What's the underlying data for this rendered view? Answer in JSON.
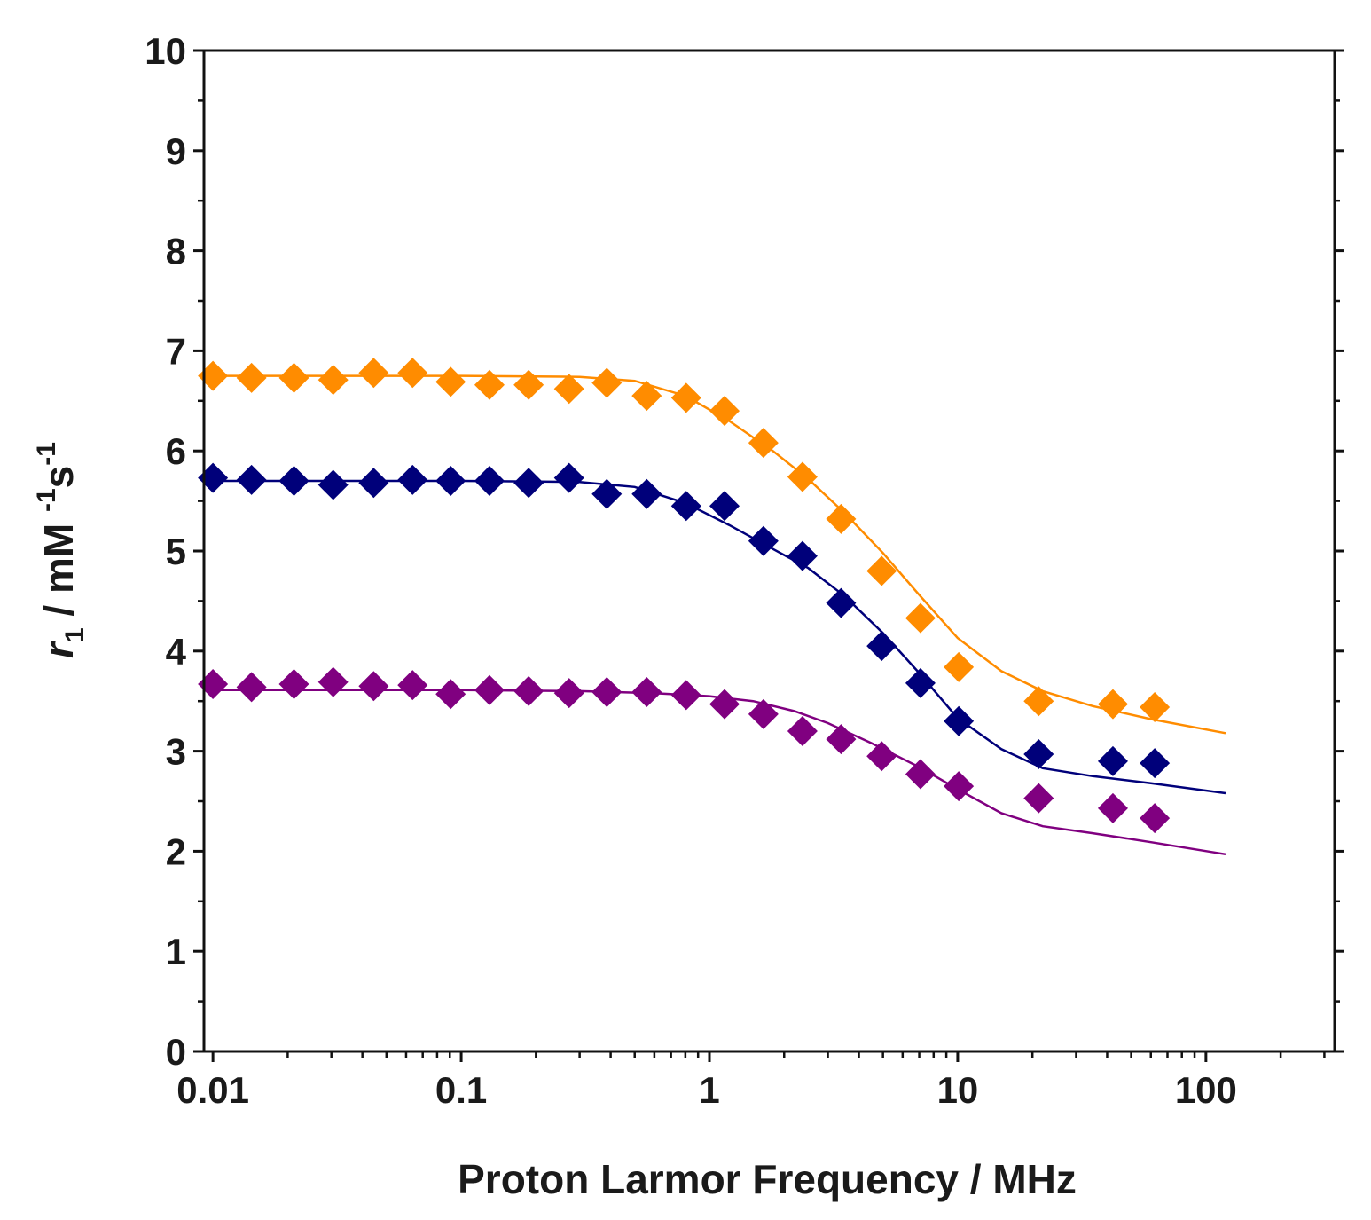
{
  "chart_data": {
    "type": "scatter",
    "title": "",
    "xlabel": "Proton Larmor Frequency / MHz",
    "ylabel": {
      "r": "r",
      "sub": "1",
      "unit_a": " / mM ",
      "sup1": "-1",
      "unit_b": "s",
      "sup2": "-1"
    },
    "xscale": "log",
    "xlim": [
      0.0092,
      330
    ],
    "ylim": [
      0,
      10
    ],
    "x_ticks": [
      0.01,
      0.1,
      1,
      10,
      100
    ],
    "x_tick_labels": [
      "0.01",
      "0.1",
      "1",
      "10",
      "100"
    ],
    "y_ticks": [
      0,
      1,
      2,
      3,
      4,
      5,
      6,
      7,
      8,
      9,
      10
    ],
    "y_tick_labels": [
      "0",
      "1",
      "2",
      "3",
      "4",
      "5",
      "6",
      "7",
      "8",
      "9",
      "10"
    ],
    "x": [
      0.01,
      0.0143,
      0.0212,
      0.0305,
      0.0444,
      0.0637,
      0.0907,
      0.13,
      0.187,
      0.272,
      0.386,
      0.559,
      0.806,
      1.15,
      1.65,
      2.37,
      3.39,
      4.94,
      7.08,
      10.1,
      21.2,
      42.2,
      62.2
    ],
    "series": [
      {
        "name": "orange",
        "color": "#ff8c00",
        "marker": "diamond",
        "values": [
          6.75,
          6.73,
          6.73,
          6.71,
          6.78,
          6.78,
          6.69,
          6.66,
          6.66,
          6.62,
          6.68,
          6.55,
          6.53,
          6.4,
          6.08,
          5.74,
          5.32,
          4.8,
          4.33,
          3.84,
          3.5,
          3.47,
          3.44
        ],
        "fit": {
          "x": [
            0.01,
            0.03,
            0.1,
            0.3,
            0.5,
            0.8,
            1.2,
            1.8,
            2.5,
            3.5,
            5,
            7,
            10,
            15,
            22,
            35,
            60,
            120
          ],
          "y": [
            6.75,
            6.75,
            6.75,
            6.74,
            6.7,
            6.55,
            6.3,
            6.0,
            5.72,
            5.38,
            4.98,
            4.56,
            4.13,
            3.8,
            3.6,
            3.45,
            3.32,
            3.18
          ]
        }
      },
      {
        "name": "navy",
        "color": "#00007a",
        "marker": "diamond",
        "values": [
          5.73,
          5.71,
          5.7,
          5.66,
          5.68,
          5.71,
          5.7,
          5.7,
          5.68,
          5.73,
          5.57,
          5.57,
          5.45,
          5.45,
          5.1,
          4.95,
          4.48,
          4.05,
          3.68,
          3.3,
          2.97,
          2.9,
          2.88
        ],
        "fit": {
          "x": [
            0.01,
            0.03,
            0.1,
            0.3,
            0.5,
            0.8,
            1.2,
            1.8,
            2.5,
            3.5,
            5,
            7,
            10,
            15,
            22,
            35,
            60,
            120
          ],
          "y": [
            5.7,
            5.7,
            5.7,
            5.69,
            5.64,
            5.48,
            5.26,
            5.02,
            4.83,
            4.55,
            4.18,
            3.78,
            3.33,
            3.02,
            2.83,
            2.75,
            2.68,
            2.58
          ]
        }
      },
      {
        "name": "purple",
        "color": "#800080",
        "marker": "diamond",
        "values": [
          3.67,
          3.64,
          3.67,
          3.69,
          3.65,
          3.66,
          3.57,
          3.61,
          3.6,
          3.58,
          3.59,
          3.59,
          3.56,
          3.47,
          3.37,
          3.2,
          3.12,
          2.95,
          2.77,
          2.65,
          2.53,
          2.43,
          2.33
        ],
        "fit": {
          "x": [
            0.01,
            0.03,
            0.1,
            0.3,
            0.6,
            1.0,
            1.5,
            2.2,
            3.0,
            4.5,
            7,
            10,
            15,
            22,
            35,
            60,
            120
          ],
          "y": [
            3.61,
            3.61,
            3.61,
            3.6,
            3.58,
            3.55,
            3.5,
            3.4,
            3.28,
            3.08,
            2.84,
            2.62,
            2.38,
            2.25,
            2.18,
            2.09,
            1.97
          ]
        }
      }
    ]
  }
}
